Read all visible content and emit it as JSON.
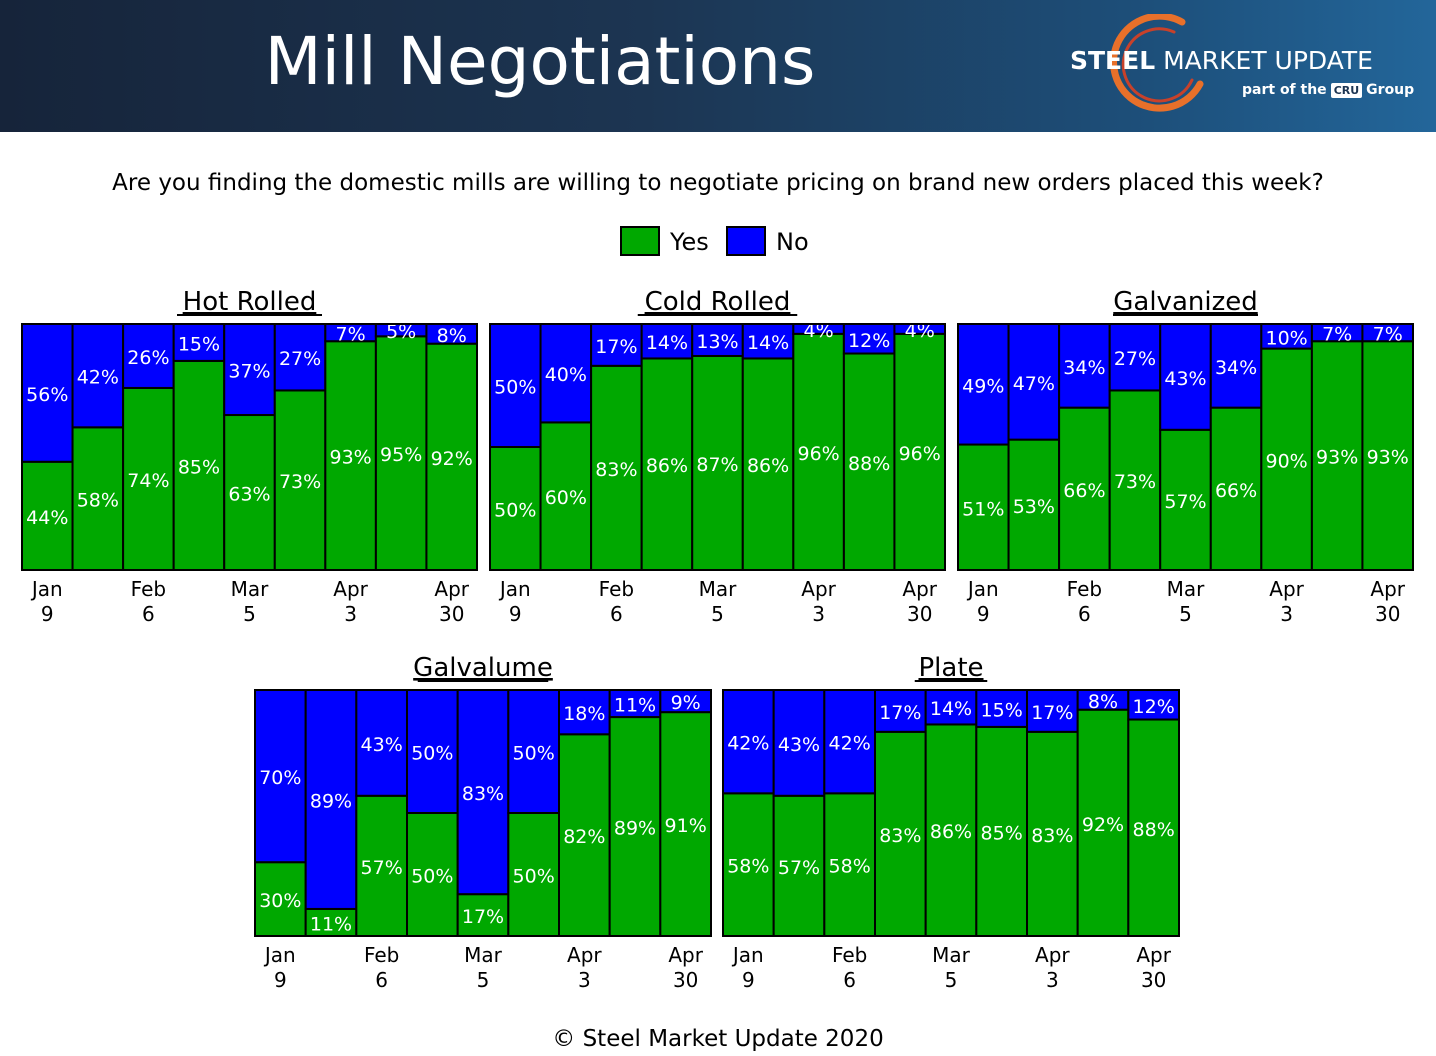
{
  "title": "Mill Negotiations",
  "logo": {
    "name_bold": "STEEL",
    "name_rest": " MARKET UPDATE",
    "sub_prefix": "part of the",
    "sub_badge": "CRU",
    "sub_suffix": "Group"
  },
  "question": "Are you finding the domestic mills are willing to negotiate pricing on brand new orders placed this week?",
  "legend": [
    {
      "label": "Yes",
      "color": "#00a800"
    },
    {
      "label": "No",
      "color": "#0000ff"
    }
  ],
  "footer": "© Steel Market Update 2020",
  "chart_data": [
    {
      "type": "bar",
      "stacked": true,
      "title": "Hot Rolled",
      "categories": [
        "Jan 9",
        "",
        "Feb 6",
        "",
        "Mar 5",
        "",
        "Apr 3",
        "",
        "Apr 30"
      ],
      "series": [
        {
          "name": "Yes",
          "values": [
            44,
            58,
            74,
            85,
            63,
            73,
            93,
            95,
            92
          ]
        },
        {
          "name": "No",
          "values": [
            56,
            42,
            26,
            15,
            37,
            27,
            7,
            5,
            8
          ]
        }
      ],
      "ylim": [
        0,
        100
      ]
    },
    {
      "type": "bar",
      "stacked": true,
      "title": "Cold Rolled",
      "categories": [
        "Jan 9",
        "",
        "Feb 6",
        "",
        "Mar 5",
        "",
        "Apr 3",
        "",
        "Apr 30"
      ],
      "series": [
        {
          "name": "Yes",
          "values": [
            50,
            60,
            83,
            86,
            87,
            86,
            96,
            88,
            96
          ]
        },
        {
          "name": "No",
          "values": [
            50,
            40,
            17,
            14,
            13,
            14,
            4,
            12,
            4
          ]
        }
      ],
      "ylim": [
        0,
        100
      ]
    },
    {
      "type": "bar",
      "stacked": true,
      "title": "Galvanized",
      "categories": [
        "Jan 9",
        "",
        "Feb 6",
        "",
        "Mar 5",
        "",
        "Apr 3",
        "",
        "Apr 30"
      ],
      "series": [
        {
          "name": "Yes",
          "values": [
            51,
            53,
            66,
            73,
            57,
            66,
            90,
            93,
            93
          ]
        },
        {
          "name": "No",
          "values": [
            49,
            47,
            34,
            27,
            43,
            34,
            10,
            7,
            7
          ]
        }
      ],
      "ylim": [
        0,
        100
      ]
    },
    {
      "type": "bar",
      "stacked": true,
      "title": "Galvalume",
      "categories": [
        "Jan 9",
        "",
        "Feb 6",
        "",
        "Mar 5",
        "",
        "Apr 3",
        "",
        "Apr 30"
      ],
      "series": [
        {
          "name": "Yes",
          "values": [
            30,
            11,
            57,
            50,
            17,
            50,
            82,
            89,
            91
          ]
        },
        {
          "name": "No",
          "values": [
            70,
            89,
            43,
            50,
            83,
            50,
            18,
            11,
            9
          ]
        }
      ],
      "ylim": [
        0,
        100
      ]
    },
    {
      "type": "bar",
      "stacked": true,
      "title": "Plate",
      "categories": [
        "Jan 9",
        "",
        "Feb 6",
        "",
        "Mar 5",
        "",
        "Apr 3",
        "",
        "Apr 30"
      ],
      "series": [
        {
          "name": "Yes",
          "values": [
            58,
            57,
            58,
            83,
            86,
            85,
            83,
            92,
            88
          ]
        },
        {
          "name": "No",
          "values": [
            42,
            43,
            42,
            17,
            14,
            15,
            17,
            8,
            12
          ]
        }
      ],
      "ylim": [
        0,
        100
      ]
    }
  ]
}
